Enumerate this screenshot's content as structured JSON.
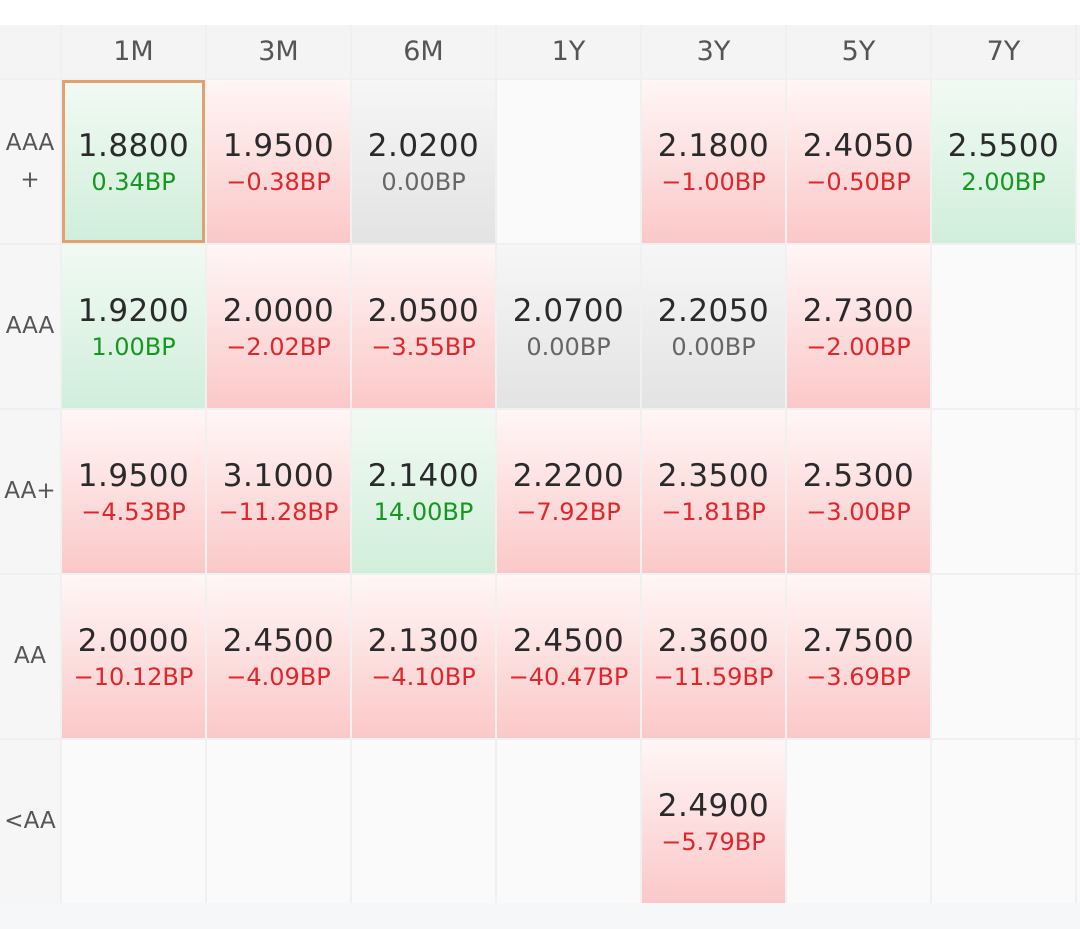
{
  "columns": [
    "1M",
    "3M",
    "6M",
    "1Y",
    "3Y",
    "5Y",
    "7Y"
  ],
  "rows": [
    {
      "label": "AAA\n+",
      "cells": [
        {
          "value": "1.8800",
          "change": "0.34BP",
          "trend": "up",
          "selected": true
        },
        {
          "value": "1.9500",
          "change": "−0.38BP",
          "trend": "down"
        },
        {
          "value": "2.0200",
          "change": "0.00BP",
          "trend": "flat"
        },
        null,
        {
          "value": "2.1800",
          "change": "−1.00BP",
          "trend": "down"
        },
        {
          "value": "2.4050",
          "change": "−0.50BP",
          "trend": "down"
        },
        {
          "value": "2.5500",
          "change": "2.00BP",
          "trend": "up"
        }
      ]
    },
    {
      "label": "AAA",
      "cells": [
        {
          "value": "1.9200",
          "change": "1.00BP",
          "trend": "up"
        },
        {
          "value": "2.0000",
          "change": "−2.02BP",
          "trend": "down"
        },
        {
          "value": "2.0500",
          "change": "−3.55BP",
          "trend": "down"
        },
        {
          "value": "2.0700",
          "change": "0.00BP",
          "trend": "flat"
        },
        {
          "value": "2.2050",
          "change": "0.00BP",
          "trend": "flat"
        },
        {
          "value": "2.7300",
          "change": "−2.00BP",
          "trend": "down"
        },
        null
      ]
    },
    {
      "label": "AA+",
      "cells": [
        {
          "value": "1.9500",
          "change": "−4.53BP",
          "trend": "down"
        },
        {
          "value": "3.1000",
          "change": "−11.28BP",
          "trend": "down"
        },
        {
          "value": "2.1400",
          "change": "14.00BP",
          "trend": "up"
        },
        {
          "value": "2.2200",
          "change": "−7.92BP",
          "trend": "down"
        },
        {
          "value": "2.3500",
          "change": "−1.81BP",
          "trend": "down"
        },
        {
          "value": "2.5300",
          "change": "−3.00BP",
          "trend": "down"
        },
        null
      ]
    },
    {
      "label": "AA",
      "cells": [
        {
          "value": "2.0000",
          "change": "−10.12BP",
          "trend": "down"
        },
        {
          "value": "2.4500",
          "change": "−4.09BP",
          "trend": "down"
        },
        {
          "value": "2.1300",
          "change": "−4.10BP",
          "trend": "down"
        },
        {
          "value": "2.4500",
          "change": "−40.47BP",
          "trend": "down"
        },
        {
          "value": "2.3600",
          "change": "−11.59BP",
          "trend": "down"
        },
        {
          "value": "2.7500",
          "change": "−3.69BP",
          "trend": "down"
        },
        null
      ]
    },
    {
      "label": "<AA",
      "cells": [
        null,
        null,
        null,
        null,
        {
          "value": "2.4900",
          "change": "−5.79BP",
          "trend": "down"
        },
        null,
        null
      ]
    }
  ],
  "colors": {
    "up": "#14991f",
    "down": "#e0262b",
    "flat": "#666666",
    "selected_border": "#e0a070"
  }
}
